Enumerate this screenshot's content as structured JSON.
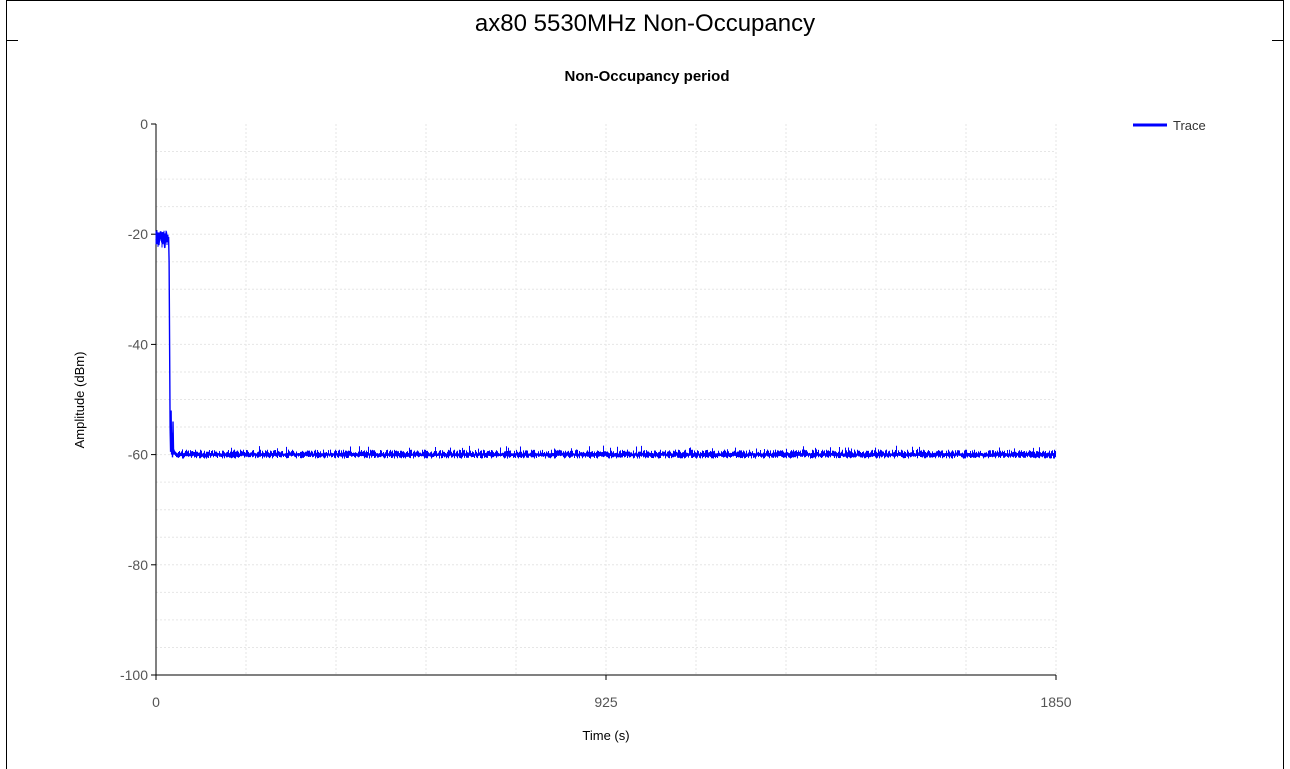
{
  "page": {
    "title": "ax80 5530MHz Non-Occupancy"
  },
  "chart_data": {
    "type": "line",
    "title": "Non-Occupancy period",
    "xlabel": "Time (s)",
    "ylabel": "Amplitude (dBm)",
    "xlim": [
      0,
      1850
    ],
    "ylim": [
      -100,
      0
    ],
    "x_ticks": [
      0,
      925,
      1850
    ],
    "x_tick_labels": [
      "0",
      "925",
      "1850"
    ],
    "y_ticks": [
      0,
      -20,
      -40,
      -60,
      -80,
      -100
    ],
    "y_tick_labels": [
      "0",
      "-20",
      "-40",
      "-60",
      "-80",
      "-100"
    ],
    "grid": true,
    "legend_position": "top-right",
    "series_color": "#0000ff",
    "series": [
      {
        "name": "Trace",
        "x": [
          0,
          3,
          6,
          9,
          12,
          15,
          18,
          21,
          24,
          26,
          27,
          28,
          29,
          30,
          31,
          32,
          33,
          34,
          35,
          36,
          37,
          38,
          40,
          45,
          60,
          100,
          200,
          300,
          400,
          500,
          600,
          700,
          800,
          900,
          1000,
          1100,
          1200,
          1300,
          1400,
          1500,
          1600,
          1700,
          1800,
          1850
        ],
        "y": [
          -21,
          -20,
          -22,
          -19.5,
          -21.5,
          -20,
          -22.5,
          -19.5,
          -21,
          -20.5,
          -25,
          -40,
          -55,
          -59.5,
          -52,
          -60,
          -56,
          -60.5,
          -54,
          -59,
          -60,
          -59.5,
          -60,
          -60,
          -60,
          -60,
          -60,
          -60,
          -60,
          -60,
          -60,
          -60,
          -60,
          -60,
          -60,
          -60,
          -60,
          -60,
          -60,
          -60,
          -60,
          -60,
          -60,
          -60
        ]
      }
    ]
  }
}
